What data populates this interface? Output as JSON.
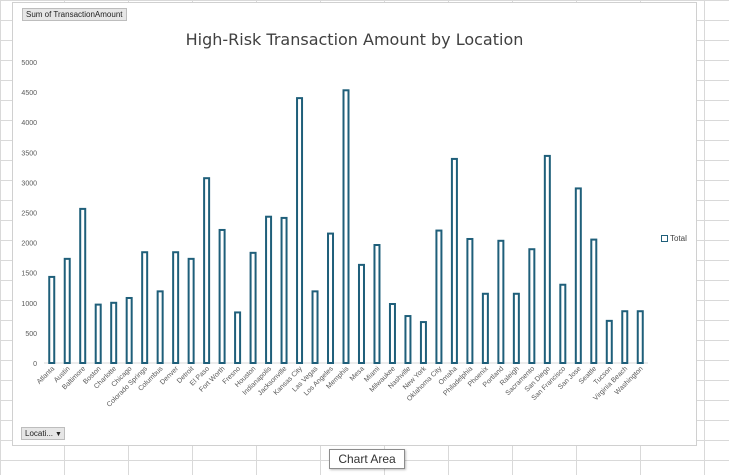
{
  "pivot": {
    "value_field": "Sum of TransactionAmount",
    "axis_field": "Locati...",
    "tooltip": "Chart Area"
  },
  "chart_data": {
    "type": "bar",
    "title": "High-Risk Transaction Amount by Location",
    "xlabel": "",
    "ylabel": "",
    "ylim": [
      0,
      5000
    ],
    "yticks": [
      0,
      500,
      1000,
      1500,
      2000,
      2500,
      3000,
      3500,
      4000,
      4500,
      5000
    ],
    "grid": false,
    "legend_position": "right",
    "bar_style": "outline",
    "series_color": "#1f5f7a",
    "categories": [
      "Atlanta",
      "Austin",
      "Baltimore",
      "Boston",
      "Charlotte",
      "Chicago",
      "Colorado Springs",
      "Columbus",
      "Denver",
      "Detroit",
      "El Paso",
      "Fort Worth",
      "Fresno",
      "Houston",
      "Indianapolis",
      "Jacksonville",
      "Kansas City",
      "Las Vegas",
      "Los Angeles",
      "Memphis",
      "Mesa",
      "Miami",
      "Milwaukee",
      "Nashville",
      "New York",
      "Oklahoma City",
      "Omaha",
      "Philadelphia",
      "Phoenix",
      "Portland",
      "Raleigh",
      "Sacramento",
      "San Diego",
      "San Francisco",
      "San Jose",
      "Seattle",
      "Tucson",
      "Virginia Beach",
      "Washington"
    ],
    "series": [
      {
        "name": "Total",
        "values": [
          1430,
          1730,
          2560,
          970,
          1000,
          1080,
          1840,
          1190,
          1840,
          1730,
          3070,
          2210,
          840,
          1830,
          2430,
          2410,
          4400,
          1190,
          2150,
          4530,
          1630,
          1960,
          980,
          780,
          680,
          2200,
          3390,
          2060,
          1150,
          2030,
          1150,
          1890,
          3440,
          1300,
          2900,
          2050,
          700,
          860,
          860
        ]
      }
    ]
  }
}
